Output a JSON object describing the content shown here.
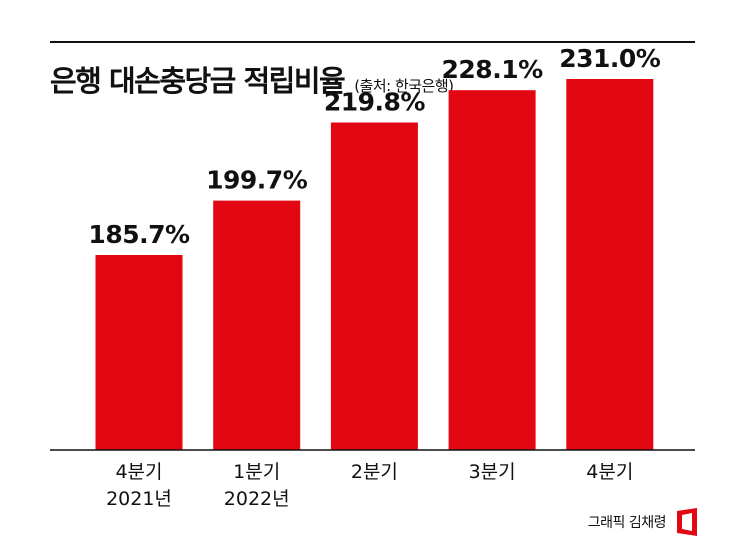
{
  "header": {
    "title": "은행 대손충당금 적립비율",
    "source": "(출처: 한국은행)"
  },
  "footer": {
    "credit": "그래픽 김채령"
  },
  "colors": {
    "bar": "#e30613",
    "axis": "#111111",
    "logo": "#e30613"
  },
  "chart_data": {
    "type": "bar",
    "title": "은행 대손충당금 적립비율",
    "xlabel": "",
    "ylabel": "",
    "categories": [
      [
        "4분기",
        "2021년"
      ],
      [
        "1분기",
        "2022년"
      ],
      [
        "2분기"
      ],
      [
        "3분기"
      ],
      [
        "4분기"
      ]
    ],
    "values": [
      185.7,
      199.7,
      219.8,
      228.1,
      231.0
    ],
    "data_labels": [
      "185.7%",
      "199.7%",
      "219.8%",
      "228.1%",
      "231.0%"
    ],
    "unit": "%",
    "grid": false,
    "legend": "none"
  }
}
